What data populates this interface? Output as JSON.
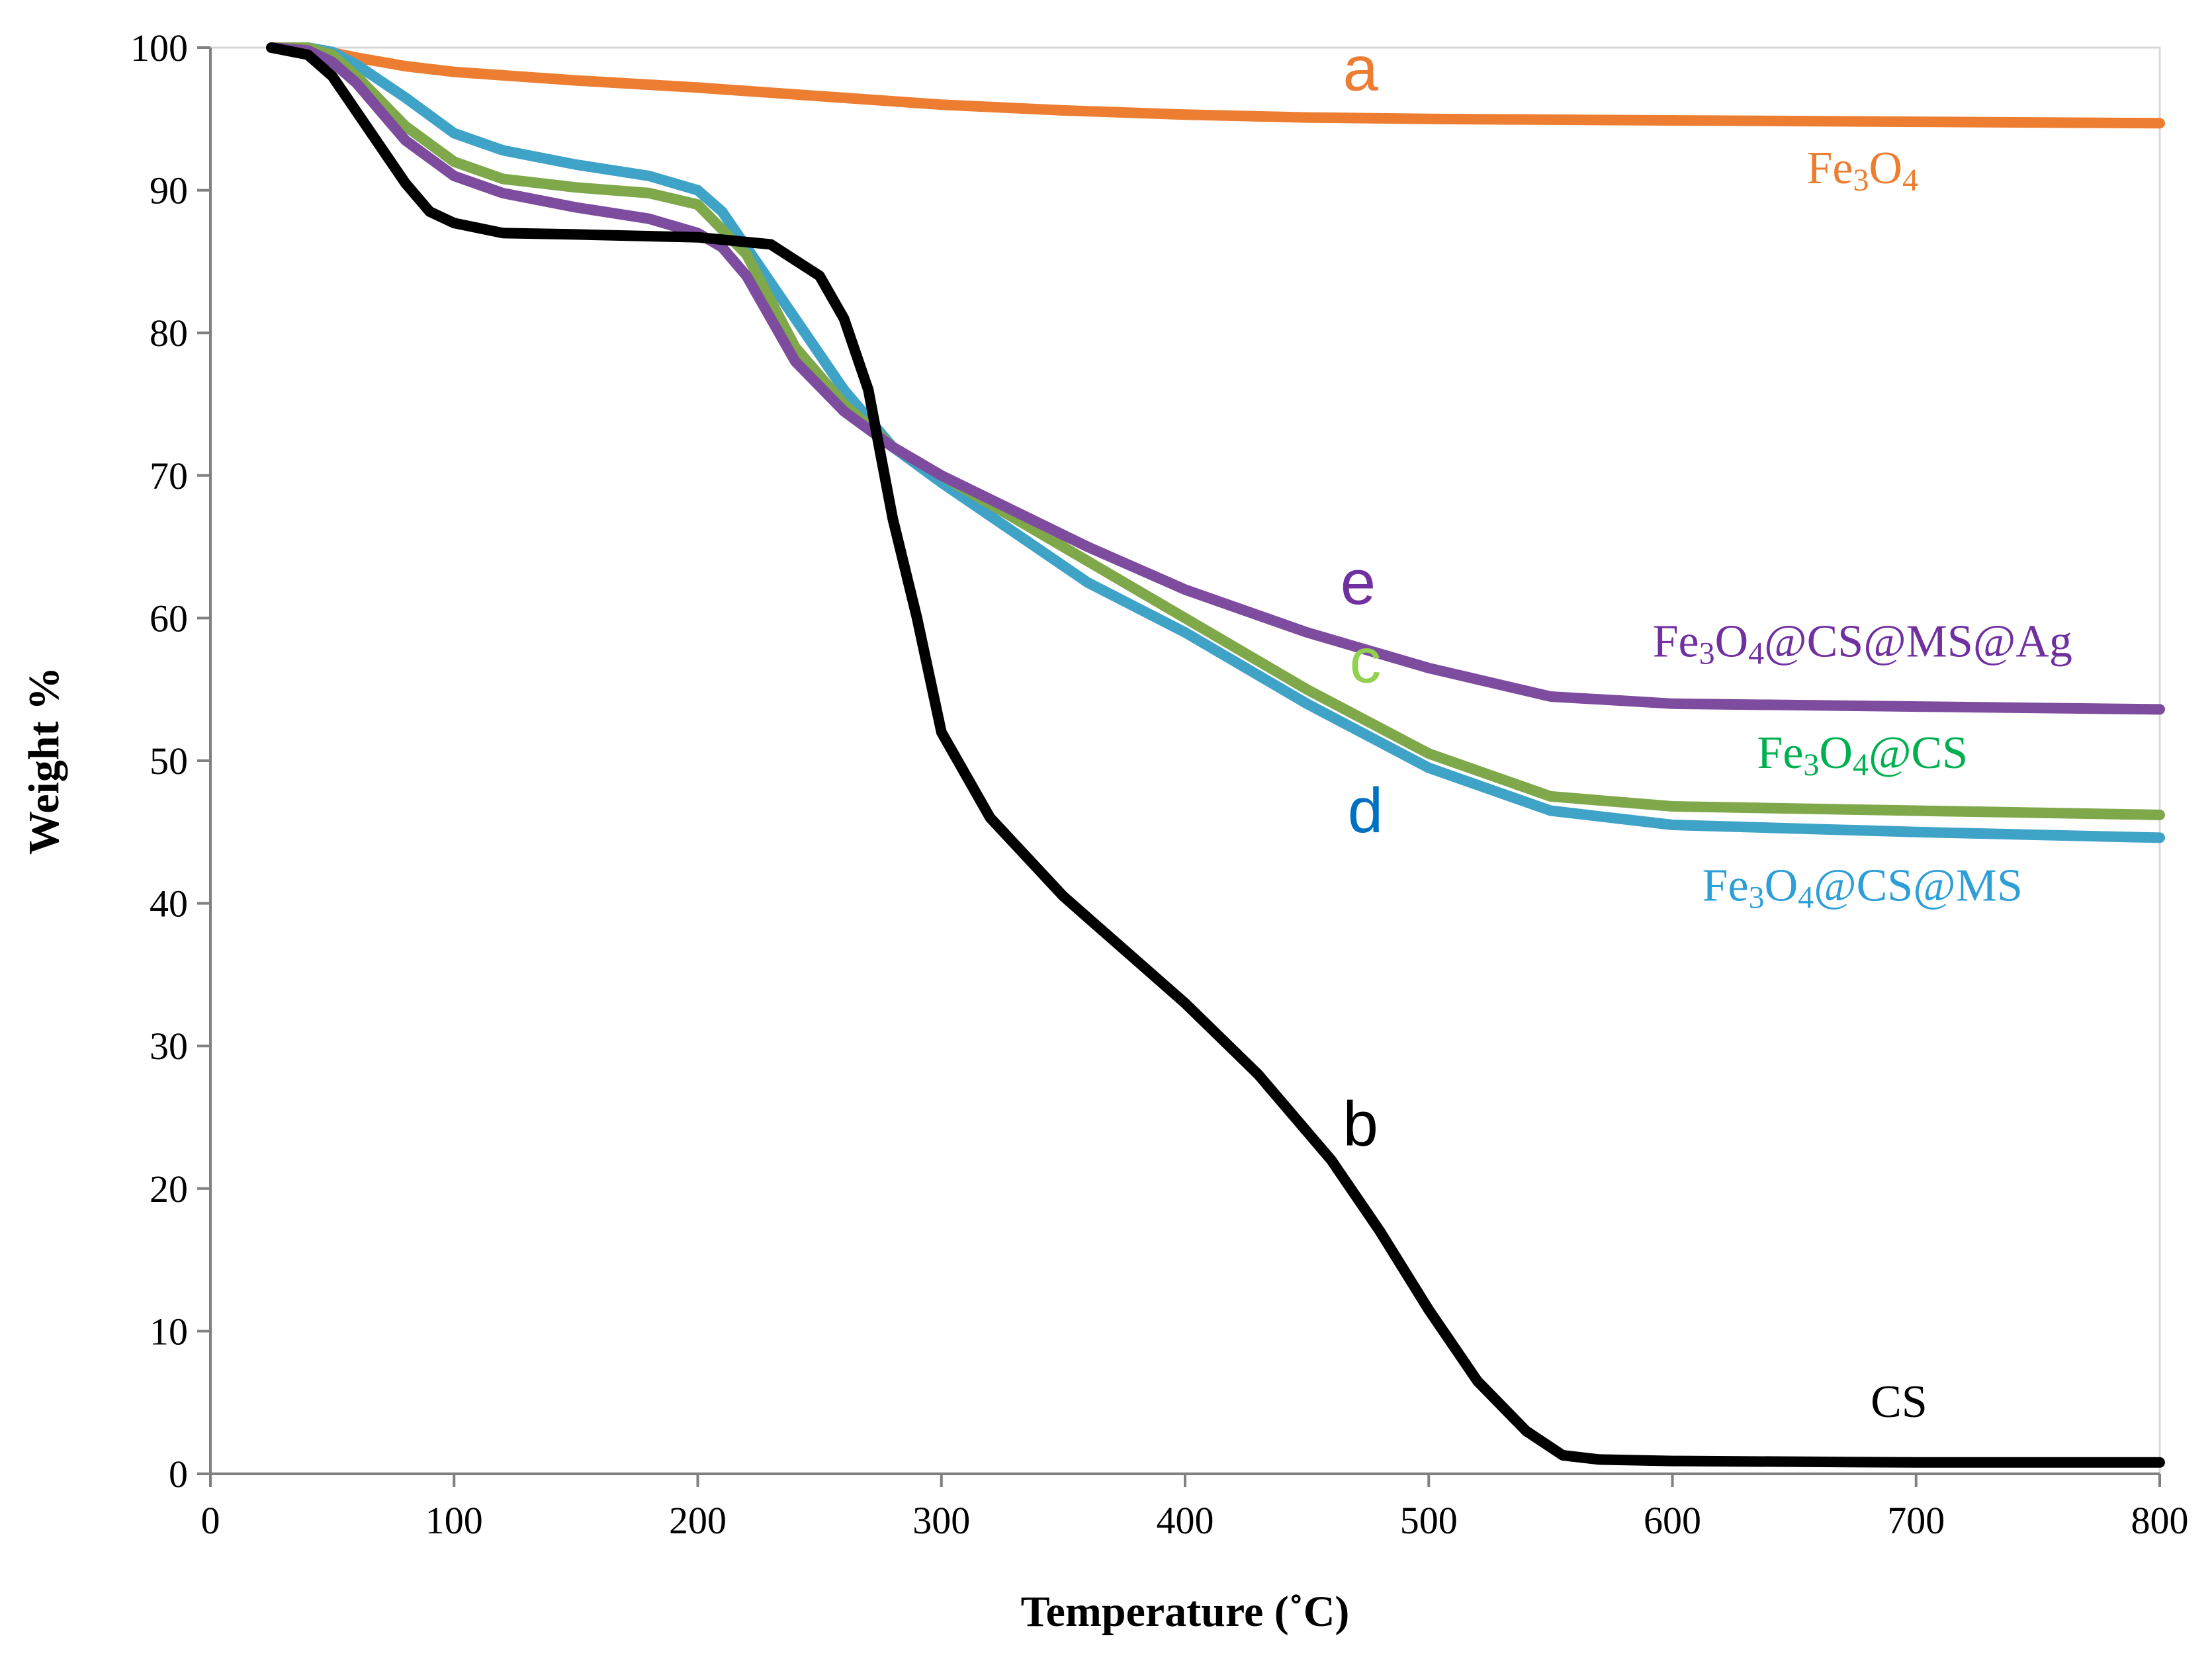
{
  "chart_data": {
    "type": "line",
    "title": "",
    "xlabel": "Temperature (˚C)",
    "ylabel": "Weight %",
    "xlim": [
      0,
      800
    ],
    "ylim": [
      0,
      100
    ],
    "xticks": [
      "0",
      "100",
      "200",
      "300",
      "400",
      "500",
      "600",
      "700",
      "800"
    ],
    "yticks": [
      "0",
      "10",
      "20",
      "30",
      "40",
      "50",
      "60",
      "70",
      "80",
      "90",
      "100"
    ],
    "grid": false,
    "series": [
      {
        "id": "a",
        "letter": "a",
        "name": "Fe3O4",
        "label_parts": [
          "Fe",
          "3",
          "O",
          "4"
        ],
        "color": "#ED7D31",
        "letter_color": "#ED7D31",
        "label_color": "#ED7D31",
        "x": [
          25,
          40,
          60,
          80,
          100,
          150,
          200,
          250,
          300,
          350,
          400,
          450,
          500,
          600,
          700,
          800
        ],
        "y": [
          100,
          100,
          99.3,
          98.7,
          98.3,
          97.7,
          97.2,
          96.6,
          96,
          95.6,
          95.3,
          95.1,
          95,
          94.9,
          94.8,
          94.7
        ]
      },
      {
        "id": "b",
        "letter": "b",
        "name": "CS",
        "label_parts": [
          "CS"
        ],
        "color": "#000000",
        "letter_color": "#000000",
        "label_color": "#000000",
        "x": [
          25,
          40,
          50,
          60,
          70,
          80,
          90,
          100,
          120,
          150,
          200,
          230,
          250,
          260,
          270,
          280,
          290,
          300,
          320,
          350,
          380,
          400,
          430,
          460,
          480,
          500,
          520,
          540,
          555,
          570,
          600,
          700,
          800
        ],
        "y": [
          100,
          99.5,
          98,
          95.5,
          93,
          90.5,
          88.5,
          87.7,
          87,
          86.9,
          86.7,
          86.2,
          84,
          81,
          76,
          67,
          60,
          52,
          46,
          40.5,
          36,
          33,
          28,
          22,
          17,
          11.5,
          6.5,
          3,
          1.3,
          1,
          0.9,
          0.8,
          0.8
        ]
      },
      {
        "id": "c",
        "letter": "c",
        "name": "Fe3O4@CS",
        "label_parts": [
          "Fe",
          "3",
          "O",
          "4",
          "@CS"
        ],
        "color": "#7FA84A",
        "letter_color": "#92D050",
        "label_color": "#00B050",
        "x": [
          25,
          40,
          50,
          60,
          80,
          100,
          120,
          150,
          180,
          200,
          220,
          240,
          260,
          280,
          300,
          330,
          360,
          400,
          450,
          500,
          550,
          600,
          700,
          800
        ],
        "y": [
          100,
          100,
          99.5,
          98,
          94.5,
          92,
          90.8,
          90.2,
          89.8,
          89,
          85.5,
          79,
          75,
          72,
          70,
          67,
          64,
          60,
          55,
          50.5,
          47.5,
          46.8,
          46.5,
          46.2
        ]
      },
      {
        "id": "d",
        "letter": "d",
        "name": "Fe3O4@CS@MS",
        "label_parts": [
          "Fe",
          "3",
          "O",
          "4",
          "@CS@MS"
        ],
        "color": "#3FA3C8",
        "letter_color": "#0070C0",
        "label_color": "#2E9FD6",
        "x": [
          25,
          40,
          50,
          60,
          80,
          100,
          120,
          150,
          180,
          200,
          210,
          220,
          240,
          260,
          280,
          300,
          330,
          360,
          400,
          450,
          500,
          550,
          600,
          700,
          800
        ],
        "y": [
          100,
          100,
          99.7,
          98.8,
          96.5,
          94,
          92.8,
          91.8,
          91,
          90,
          88.5,
          86,
          81,
          76,
          72,
          69.5,
          66,
          62.5,
          59,
          54,
          49.5,
          46.5,
          45.5,
          45,
          44.6
        ]
      },
      {
        "id": "e",
        "letter": "e",
        "name": "Fe3O4@CS@MS@Ag",
        "label_parts": [
          "Fe",
          "3",
          "O",
          "4",
          "@CS@MS@Ag"
        ],
        "color": "#7E4C9E",
        "letter_color": "#7030A0",
        "label_color": "#7030A0",
        "x": [
          25,
          40,
          50,
          60,
          80,
          100,
          120,
          150,
          180,
          200,
          210,
          220,
          240,
          260,
          280,
          300,
          330,
          360,
          400,
          450,
          500,
          550,
          580,
          600,
          700,
          800
        ],
        "y": [
          100,
          99.8,
          99,
          97.5,
          93.5,
          91,
          89.8,
          88.8,
          88,
          87,
          86,
          84,
          78,
          74.5,
          72,
          70,
          67.5,
          65,
          62,
          59,
          56.5,
          54.5,
          54.2,
          54,
          53.8,
          53.6
        ]
      }
    ]
  }
}
